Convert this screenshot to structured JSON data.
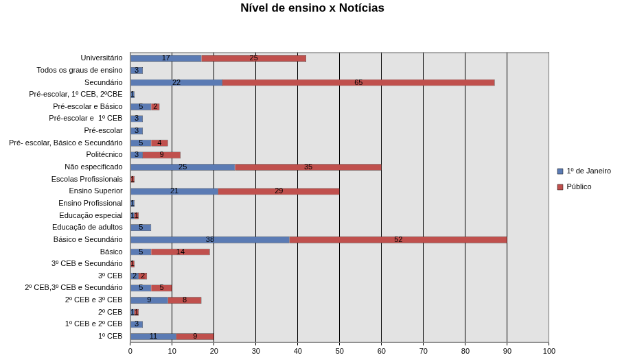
{
  "chart_data": {
    "type": "bar",
    "title": "Nível de ensino x Notícias",
    "orientation": "horizontal",
    "stacked": true,
    "data_labels": true,
    "grid": true,
    "legend": "right",
    "categories": [
      "Universitário",
      "Todos os graus de ensino",
      "Secundário",
      "Pré-escolar, 1º CEB, 2ºCBE",
      "Pré-escolar e Básico",
      "Pré-escolar e  1º CEB",
      "Pré-escolar",
      "Pré- escolar, Básico e Secundário",
      "Politécnico",
      "Não especificado",
      "Escolas Profissionais",
      "Ensino Superior",
      "Ensino Profissional",
      "Educação especial",
      "Educação de adultos",
      "Básico e Secundário",
      "Básico",
      "3º CEB e Secundário",
      "3º CEB",
      "2º CEB,3º CEB e Secundário",
      "2º CEB e 3º CEB",
      "2º CEB",
      "1º CEB e 2º CEB",
      "1º CEB"
    ],
    "series": [
      {
        "name": "1º de Janeiro",
        "color": "#5b7bb4",
        "values": [
          17,
          3,
          22,
          1,
          5,
          3,
          3,
          5,
          3,
          25,
          null,
          21,
          1,
          1,
          5,
          38,
          5,
          null,
          2,
          5,
          9,
          1,
          3,
          11
        ]
      },
      {
        "name": "Público",
        "color": "#c0504d",
        "values": [
          25,
          null,
          65,
          null,
          2,
          null,
          null,
          4,
          9,
          35,
          1,
          29,
          null,
          1,
          null,
          52,
          14,
          1,
          2,
          5,
          8,
          1,
          null,
          9
        ]
      }
    ],
    "xlim": [
      0,
      100
    ],
    "xticks": [
      0,
      10,
      20,
      30,
      40,
      50,
      60,
      70,
      80,
      90,
      100
    ]
  }
}
